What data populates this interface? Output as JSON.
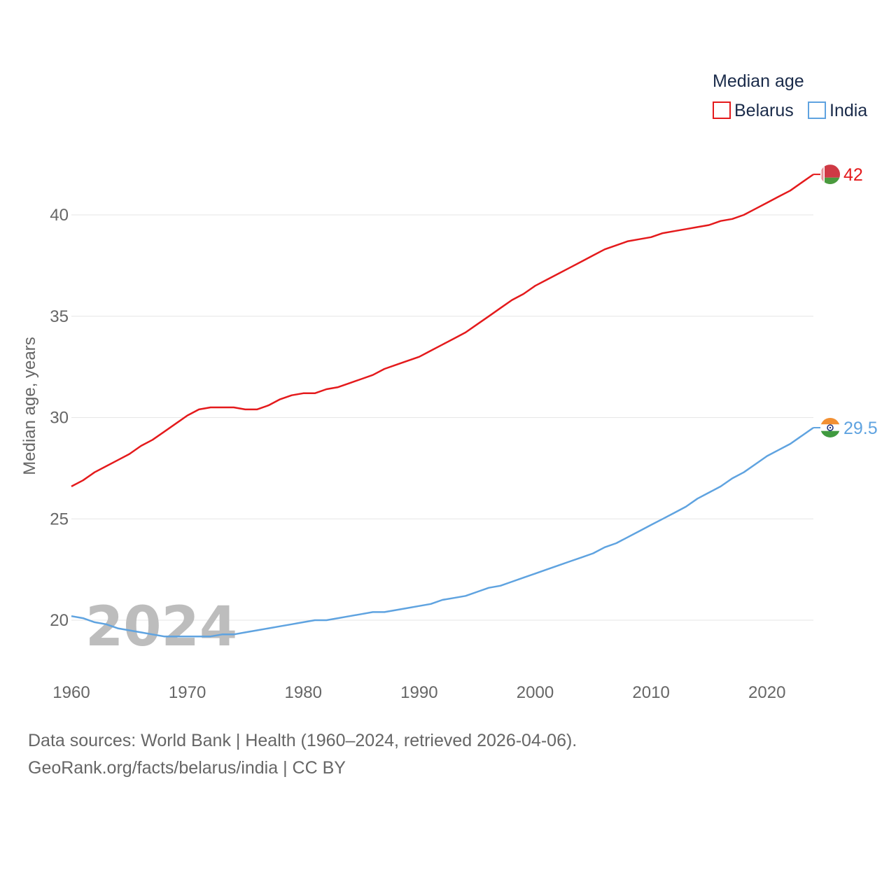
{
  "chart_data": {
    "type": "line",
    "ylabel": "Median age, years",
    "xlabel": "",
    "year_label": "2024",
    "legend_title": "Median age",
    "legend_placement": "top-right",
    "xlim": [
      1960,
      2024
    ],
    "ylim": [
      18,
      43
    ],
    "x_ticks": [
      1960,
      1970,
      1980,
      1990,
      2000,
      2010,
      2020
    ],
    "y_ticks": [
      20,
      25,
      30,
      35,
      40
    ],
    "grid": true,
    "series": [
      {
        "name": "Belarus",
        "color": "#e41a1c",
        "end_label": "42",
        "flag": "belarus-flag-icon",
        "points": [
          [
            1960,
            26.6
          ],
          [
            1961,
            26.9
          ],
          [
            1962,
            27.3
          ],
          [
            1963,
            27.6
          ],
          [
            1964,
            27.9
          ],
          [
            1965,
            28.2
          ],
          [
            1966,
            28.6
          ],
          [
            1967,
            28.9
          ],
          [
            1968,
            29.3
          ],
          [
            1969,
            29.7
          ],
          [
            1970,
            30.1
          ],
          [
            1971,
            30.4
          ],
          [
            1972,
            30.5
          ],
          [
            1973,
            30.5
          ],
          [
            1974,
            30.5
          ],
          [
            1975,
            30.4
          ],
          [
            1976,
            30.4
          ],
          [
            1977,
            30.6
          ],
          [
            1978,
            30.9
          ],
          [
            1979,
            31.1
          ],
          [
            1980,
            31.2
          ],
          [
            1981,
            31.2
          ],
          [
            1982,
            31.4
          ],
          [
            1983,
            31.5
          ],
          [
            1984,
            31.7
          ],
          [
            1985,
            31.9
          ],
          [
            1986,
            32.1
          ],
          [
            1987,
            32.4
          ],
          [
            1988,
            32.6
          ],
          [
            1989,
            32.8
          ],
          [
            1990,
            33.0
          ],
          [
            1991,
            33.3
          ],
          [
            1992,
            33.6
          ],
          [
            1993,
            33.9
          ],
          [
            1994,
            34.2
          ],
          [
            1995,
            34.6
          ],
          [
            1996,
            35.0
          ],
          [
            1997,
            35.4
          ],
          [
            1998,
            35.8
          ],
          [
            1999,
            36.1
          ],
          [
            2000,
            36.5
          ],
          [
            2001,
            36.8
          ],
          [
            2002,
            37.1
          ],
          [
            2003,
            37.4
          ],
          [
            2004,
            37.7
          ],
          [
            2005,
            38.0
          ],
          [
            2006,
            38.3
          ],
          [
            2007,
            38.5
          ],
          [
            2008,
            38.7
          ],
          [
            2009,
            38.8
          ],
          [
            2010,
            38.9
          ],
          [
            2011,
            39.1
          ],
          [
            2012,
            39.2
          ],
          [
            2013,
            39.3
          ],
          [
            2014,
            39.4
          ],
          [
            2015,
            39.5
          ],
          [
            2016,
            39.7
          ],
          [
            2017,
            39.8
          ],
          [
            2018,
            40.0
          ],
          [
            2019,
            40.3
          ],
          [
            2020,
            40.6
          ],
          [
            2021,
            40.9
          ],
          [
            2022,
            41.2
          ],
          [
            2023,
            41.6
          ],
          [
            2024,
            42.0
          ]
        ]
      },
      {
        "name": "India",
        "color": "#5fa3e0",
        "end_label": "29.5",
        "flag": "india-flag-icon",
        "points": [
          [
            1960,
            20.2
          ],
          [
            1961,
            20.1
          ],
          [
            1962,
            19.9
          ],
          [
            1963,
            19.8
          ],
          [
            1964,
            19.6
          ],
          [
            1965,
            19.5
          ],
          [
            1966,
            19.4
          ],
          [
            1967,
            19.3
          ],
          [
            1968,
            19.2
          ],
          [
            1969,
            19.2
          ],
          [
            1970,
            19.2
          ],
          [
            1971,
            19.2
          ],
          [
            1972,
            19.2
          ],
          [
            1973,
            19.3
          ],
          [
            1974,
            19.3
          ],
          [
            1975,
            19.4
          ],
          [
            1976,
            19.5
          ],
          [
            1977,
            19.6
          ],
          [
            1978,
            19.7
          ],
          [
            1979,
            19.8
          ],
          [
            1980,
            19.9
          ],
          [
            1981,
            20.0
          ],
          [
            1982,
            20.0
          ],
          [
            1983,
            20.1
          ],
          [
            1984,
            20.2
          ],
          [
            1985,
            20.3
          ],
          [
            1986,
            20.4
          ],
          [
            1987,
            20.4
          ],
          [
            1988,
            20.5
          ],
          [
            1989,
            20.6
          ],
          [
            1990,
            20.7
          ],
          [
            1991,
            20.8
          ],
          [
            1992,
            21.0
          ],
          [
            1993,
            21.1
          ],
          [
            1994,
            21.2
          ],
          [
            1995,
            21.4
          ],
          [
            1996,
            21.6
          ],
          [
            1997,
            21.7
          ],
          [
            1998,
            21.9
          ],
          [
            1999,
            22.1
          ],
          [
            2000,
            22.3
          ],
          [
            2001,
            22.5
          ],
          [
            2002,
            22.7
          ],
          [
            2003,
            22.9
          ],
          [
            2004,
            23.1
          ],
          [
            2005,
            23.3
          ],
          [
            2006,
            23.6
          ],
          [
            2007,
            23.8
          ],
          [
            2008,
            24.1
          ],
          [
            2009,
            24.4
          ],
          [
            2010,
            24.7
          ],
          [
            2011,
            25.0
          ],
          [
            2012,
            25.3
          ],
          [
            2013,
            25.6
          ],
          [
            2014,
            26.0
          ],
          [
            2015,
            26.3
          ],
          [
            2016,
            26.6
          ],
          [
            2017,
            27.0
          ],
          [
            2018,
            27.3
          ],
          [
            2019,
            27.7
          ],
          [
            2020,
            28.1
          ],
          [
            2021,
            28.4
          ],
          [
            2022,
            28.7
          ],
          [
            2023,
            29.1
          ],
          [
            2024,
            29.5
          ]
        ]
      }
    ]
  },
  "footer": {
    "sources": "Data sources: World Bank | Health (1960–2024, retrieved 2026-04-06).",
    "credit": "GeoRank.org/facts/belarus/india | CC BY"
  }
}
